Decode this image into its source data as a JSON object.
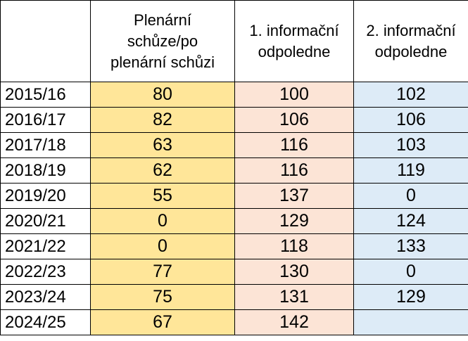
{
  "colors": {
    "col_1_fill": "#ffe699",
    "col_2_fill": "#fce4d6",
    "col_3_fill": "#ddebf7",
    "grid": "#000000"
  },
  "table": {
    "headers": [
      "",
      "Plenární schůze/po plenární schůzi",
      "1. informační odpoledne",
      "2. informační odpoledne"
    ],
    "rows": [
      [
        "2015/16",
        "80",
        "100",
        "102"
      ],
      [
        "2016/17",
        "82",
        "106",
        "106"
      ],
      [
        "2017/18",
        "63",
        "116",
        "103"
      ],
      [
        "2018/19",
        "62",
        "116",
        "119"
      ],
      [
        "2019/20",
        "55",
        "137",
        "0"
      ],
      [
        "2020/21",
        "0",
        "129",
        "124"
      ],
      [
        "2021/22",
        "0",
        "118",
        "133"
      ],
      [
        "2022/23",
        "77",
        "130",
        "0"
      ],
      [
        "2023/24",
        "75",
        "131",
        "129"
      ],
      [
        "2024/25",
        "67",
        "142",
        ""
      ]
    ]
  }
}
